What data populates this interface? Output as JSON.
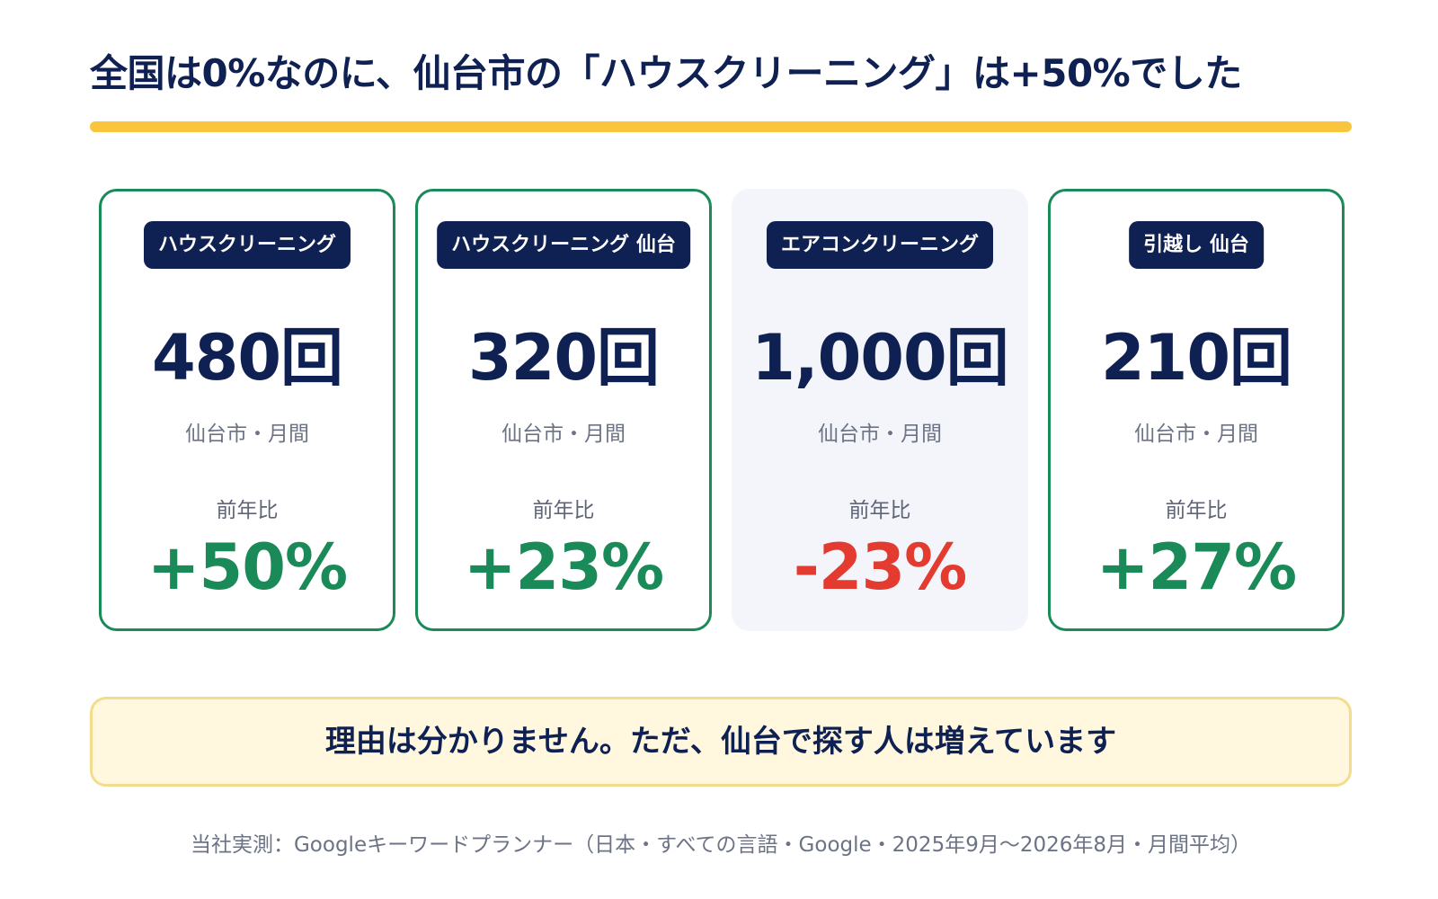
{
  "headline": "全国は0%なのに、仙台市の「ハウスクリーニング」は+50%でした",
  "colors": {
    "navy": "#0f2152",
    "accent_yellow": "#f8c53c",
    "positive_green": "#198a58",
    "negative_red": "#e43b30",
    "muted_card_bg": "#f3f5fb",
    "note_bg": "#fff8df"
  },
  "cards": [
    {
      "keyword": "ハウスクリーニング",
      "volume": "480回",
      "volume_note": "仙台市・月間",
      "yoy_label": "前年比",
      "yoy": "+50%"
    },
    {
      "keyword": "ハウスクリーニング 仙台",
      "volume": "320回",
      "volume_note": "仙台市・月間",
      "yoy_label": "前年比",
      "yoy": "+23%"
    },
    {
      "keyword": "エアコンクリーニング",
      "volume": "1,000回",
      "volume_note": "仙台市・月間",
      "yoy_label": "前年比",
      "yoy": "-23%"
    },
    {
      "keyword": "引越し 仙台",
      "volume": "210回",
      "volume_note": "仙台市・月間",
      "yoy_label": "前年比",
      "yoy": "+27%"
    }
  ],
  "note": "理由は分かりません。ただ、仙台で探す人は増えています",
  "source": "当社実測：Googleキーワードプランナー（日本・すべての言語・Google・2025年9月〜2026年8月・月間平均）"
}
